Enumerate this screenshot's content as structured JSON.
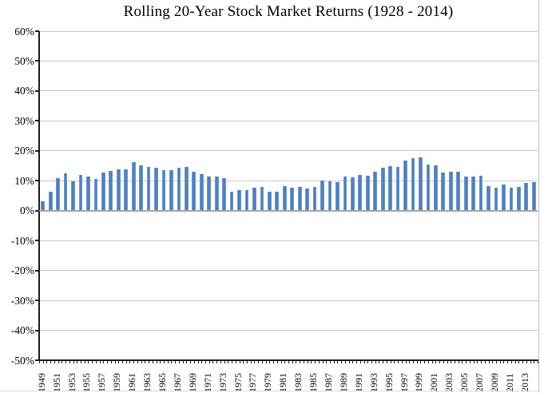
{
  "chart_data": {
    "type": "bar",
    "title": "Rolling 20-Year Stock Market Returns (1928 - 2014)",
    "xlabel": "",
    "ylabel": "",
    "ylim": [
      -50,
      60
    ],
    "ytick_step": 10,
    "ytick_labels": [
      "60%",
      "50%",
      "40%",
      "30%",
      "20%",
      "10%",
      "0%",
      "-10%",
      "-20%",
      "-30%",
      "-40%",
      "-50%"
    ],
    "xtick_labels": [
      "1949",
      "1951",
      "1953",
      "1955",
      "1957",
      "1959",
      "1961",
      "1963",
      "1965",
      "1967",
      "1969",
      "1971",
      "1973",
      "1975",
      "1977",
      "1979",
      "1981",
      "1983",
      "1985",
      "1987",
      "1989",
      "1991",
      "1993",
      "1995",
      "1997",
      "1999",
      "2001",
      "2003",
      "2005",
      "2007",
      "2009",
      "2011",
      "2013"
    ],
    "grid": true,
    "legend": false,
    "bar_color": "#4F81BD",
    "gridline_color": "#C7C7C7",
    "zero_line_color": "#A6A6A6",
    "axis_color": "#1A1A1A",
    "categories": [
      1949,
      1950,
      1951,
      1952,
      1953,
      1954,
      1955,
      1956,
      1957,
      1958,
      1959,
      1960,
      1961,
      1962,
      1963,
      1964,
      1965,
      1966,
      1967,
      1968,
      1969,
      1970,
      1971,
      1972,
      1973,
      1974,
      1975,
      1976,
      1977,
      1978,
      1979,
      1980,
      1981,
      1982,
      1983,
      1984,
      1985,
      1986,
      1987,
      1988,
      1989,
      1990,
      1991,
      1992,
      1993,
      1994,
      1995,
      1996,
      1997,
      1998,
      1999,
      2000,
      2001,
      2002,
      2003,
      2004,
      2005,
      2006,
      2007,
      2008,
      2009,
      2010,
      2011,
      2012,
      2013,
      2014
    ],
    "values": [
      3.4,
      6.7,
      11.2,
      12.7,
      10.0,
      12.3,
      11.8,
      11.0,
      13.0,
      13.6,
      14.0,
      14.1,
      16.5,
      15.4,
      15.0,
      14.7,
      13.9,
      13.7,
      14.5,
      15.0,
      13.4,
      12.5,
      11.8,
      11.8,
      11.2,
      6.7,
      7.2,
      7.2,
      7.9,
      8.2,
      6.7,
      6.7,
      8.5,
      8.0,
      8.2,
      7.8,
      8.2,
      10.3,
      10.0,
      9.7,
      11.6,
      11.4,
      12.1,
      12.0,
      13.4,
      14.7,
      15.1,
      14.9,
      17.0,
      17.9,
      18.0,
      15.8,
      15.4,
      13.0,
      13.2,
      13.2,
      11.8,
      11.8,
      12.0,
      8.5,
      8.0,
      8.9,
      7.9,
      8.1,
      9.5,
      9.9
    ]
  }
}
